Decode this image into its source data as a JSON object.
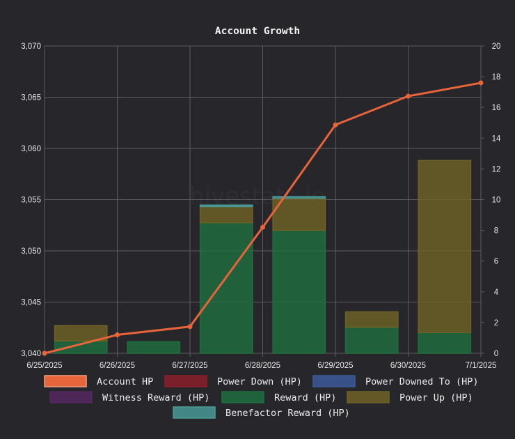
{
  "chart_data": {
    "type": "bar",
    "title": "Account Growth",
    "watermark": "hivestats.io",
    "x_ticks": [
      "6/25/2025",
      "6/26/2025",
      "6/27/2025",
      "6/28/2025",
      "6/29/2025",
      "6/30/2025",
      "7/1/2025"
    ],
    "bar_categories": [
      "6/25/2025",
      "6/26/2025",
      "6/27/2025",
      "6/28/2025",
      "6/29/2025",
      "6/30/2025"
    ],
    "y_left": {
      "min": 3040,
      "max": 3070,
      "ticks": [
        "3,040",
        "3,045",
        "3,050",
        "3,055",
        "3,060",
        "3,065",
        "3,070"
      ]
    },
    "y_right": {
      "min": 0,
      "max": 20,
      "ticks": [
        "0",
        "2",
        "4",
        "6",
        "8",
        "10",
        "12",
        "14",
        "16",
        "18",
        "20"
      ]
    },
    "grid": true,
    "legend_position": "bottom",
    "series": [
      {
        "name": "Account HP",
        "type": "line",
        "axis": "left",
        "color": "#e8643a",
        "x": [
          "6/25/2025",
          "6/26/2025",
          "6/27/2025",
          "6/28/2025",
          "6/29/2025",
          "6/30/2025",
          "7/1/2025"
        ],
        "values": [
          3040.0,
          3041.8,
          3042.6,
          3052.3,
          3062.3,
          3065.1,
          3066.4
        ]
      },
      {
        "name": "Power Down (HP)",
        "type": "bar",
        "axis": "right",
        "color": "#8b1e2b",
        "values": [
          0,
          0,
          0,
          0,
          0,
          0
        ]
      },
      {
        "name": "Power Downed To (HP)",
        "type": "bar",
        "axis": "right",
        "color": "#3c5a99",
        "values": [
          0,
          0,
          0,
          0,
          0,
          0
        ]
      },
      {
        "name": "Witness Reward (HP)",
        "type": "bar",
        "axis": "right",
        "color": "#54285f",
        "values": [
          0,
          0,
          0,
          0,
          0,
          0
        ]
      },
      {
        "name": "Reward (HP)",
        "type": "bar",
        "axis": "right",
        "color": "#1e6e40",
        "values": [
          0.8,
          0.75,
          8.5,
          8.0,
          1.7,
          1.35
        ]
      },
      {
        "name": "Power Up (HP)",
        "type": "bar",
        "axis": "right",
        "color": "#6e6226",
        "values": [
          1.0,
          0,
          1.05,
          2.1,
          1.0,
          11.2
        ]
      },
      {
        "name": "Benefactor Reward (HP)",
        "type": "bar",
        "axis": "right",
        "color": "#4a9a96",
        "values": [
          0,
          0,
          0.1,
          0.1,
          0,
          0
        ]
      }
    ]
  }
}
